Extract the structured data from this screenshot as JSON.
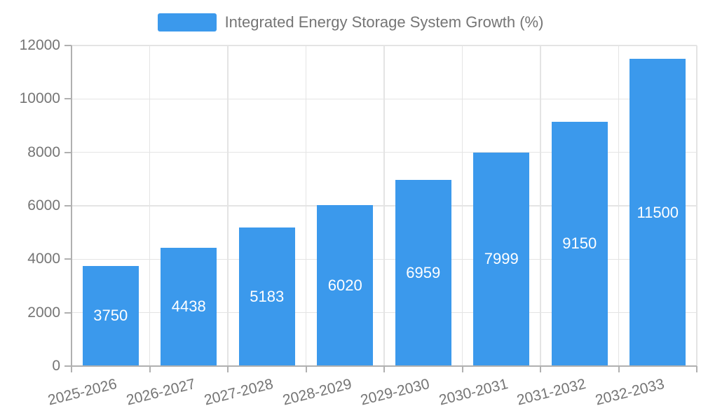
{
  "legend": {
    "label": "Integrated Energy Storage System Growth (%)"
  },
  "chart_data": {
    "type": "bar",
    "title": "Integrated Energy Storage System Growth (%)",
    "categories": [
      "2025-2026",
      "2026-2027",
      "2027-2028",
      "2028-2029",
      "2029-2030",
      "2030-2031",
      "2031-2032",
      "2032-2033"
    ],
    "values": [
      3750,
      4438,
      5183,
      6020,
      6959,
      7999,
      9150,
      11500
    ],
    "xlabel": "",
    "ylabel": "",
    "ylim": [
      0,
      12000
    ],
    "yticks": [
      0,
      2000,
      4000,
      6000,
      8000,
      10000,
      12000
    ],
    "grid": true,
    "legend_position": "top-center",
    "x_label_rotation_deg": 14,
    "bar_color": "#3B99EC",
    "bar_label_color": "#ffffff",
    "axis_color": "#b0b0b0",
    "grid_color": "#e4e4e4",
    "tick_label_color": "#757575",
    "background_color": "#ffffff"
  }
}
